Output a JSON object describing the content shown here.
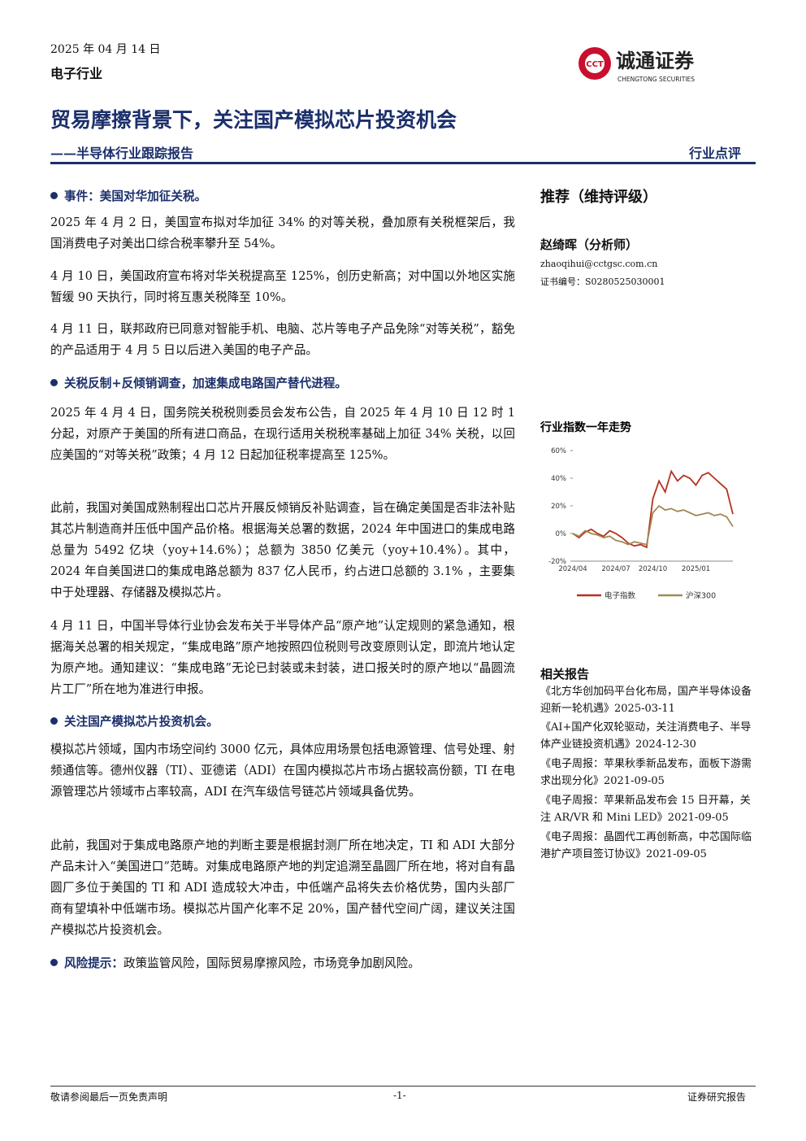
{
  "header": {
    "date": "2025 年 04 月 14 日",
    "industry": "电子行业",
    "logo_mark": "CCT",
    "logo_cn": "诚通证券",
    "logo_en": "CHENGTONG SECURITIES"
  },
  "title": "贸易摩擦背景下，关注国产模拟芯片投资机会",
  "subtitle": "——半导体行业跟踪报告",
  "report_type": "行业点评",
  "body": [
    {
      "heading": "事件：美国对华加征关税。",
      "paragraphs": [
        "2025 年 4 月 2 日，美国宣布拟对华加征 34% 的对等关税，叠加原有关税框架后，我国消费电子对美出口综合税率攀升至 54%。",
        "4 月 10 日，美国政府宣布将对华关税提高至 125%，创历史新高；对中国以外地区实施暂缓 90 天执行，同时将互惠关税降至 10%。",
        "4 月 11 日，联邦政府已同意对智能手机、电脑、芯片等电子产品免除“对等关税”，豁免的产品适用于 4 月 5 日以后进入美国的电子产品。"
      ]
    },
    {
      "heading": "关税反制+反倾销调查，加速集成电路国产替代进程。",
      "paragraphs": [
        "2025 年 4 月 4 日，国务院关税税则委员会发布公告，自 2025 年 4 月 10 日 12 时 1 分起，对原产于美国的所有进口商品，在现行适用关税税率基础上加征 34% 关税，以回应美国的“对等关税”政策；4 月 12 日起加征税率提高至 125%。",
        "此前，我国对美国成熟制程出口芯片开展反倾销反补贴调查，旨在确定美国是否非法补贴其芯片制造商并压低中国产品价格。根据海关总署的数据，2024 年中国进口的集成电路总量为 5492 亿块（yoy+14.6%）；总额为 3850 亿美元（yoy+10.4%）。其中，2024 年自美国进口的集成电路总额为 837 亿人民币，约占进口总额的 3.1% ，主要集中于处理器、存储器及模拟芯片。",
        "4 月 11 日，中国半导体行业协会发布关于半导体产品“原产地”认定规则的紧急通知，根据海关总署的相关规定，“集成电路”原产地按照四位税则号改变原则认定，即流片地认定为原产地。通知建议：“集成电路”无论已封装或未封装，进口报关时的原产地以“晶圆流片工厂”所在地为准进行申报。"
      ]
    },
    {
      "heading": "关注国产模拟芯片投资机会。",
      "paragraphs": [
        "模拟芯片领域，国内市场空间约 3000 亿元，具体应用场景包括电源管理、信号处理、射频通信等。德州仪器（TI）、亚德诺（ADI）在国内模拟芯片市场占据较高份额，TI 在电源管理芯片领域市占率较高，ADI 在汽车级信号链芯片领域具备优势。",
        "此前，我国对于集成电路原产地的判断主要是根据封测厂所在地决定，TI 和 ADI 大部分产品未计入“美国进口”范畴。对集成电路原产地的判定追溯至晶圆厂所在地，将对自有晶圆厂多位于美国的 TI 和 ADI 造成较大冲击，中低端产品将失去价格优势，国内头部厂商有望填补中低端市场。模拟芯片国产化率不足 20%，国产替代空间广阔，建议关注国产模拟芯片投资机会。"
      ]
    }
  ],
  "risk": {
    "label": "风险提示：",
    "text": "政策监管风险，国际贸易摩擦风险，市场竞争加剧风险。"
  },
  "sidebar": {
    "rating": "推荐（维持评级）",
    "analyst": "赵绮晖（分析师）",
    "email": "zhaoqihui@cctgsc.com.cn",
    "cert": "证书编号：S0280525030001",
    "related_title": "相关报告",
    "related": [
      "《北方华创加码平台化布局，国产半导体设备迎新一轮机遇》2025-03-11",
      "《AI+国产化双轮驱动，关注消费电子、半导体产业链投资机遇》2024-12-30",
      "《电子周报：苹果秋季新品发布，面板下游需求出现分化》2021-09-05",
      "《电子周报：苹果新品发布会 15 日开幕，关注 AR/VR 和 Mini LED》2021-09-05",
      "《电子周报：晶圆代工再创新高，中芯国际临港扩产项目签订协议》2021-09-05"
    ]
  },
  "chart_data": {
    "type": "line",
    "title": "行业指数一年走势",
    "categories": [
      "2024/04",
      null,
      null,
      null,
      null,
      null,
      null,
      "2024/07",
      null,
      null,
      null,
      null,
      null,
      "2024/10",
      null,
      null,
      null,
      null,
      null,
      null,
      "2025/01",
      null,
      null,
      null,
      null,
      null,
      null
    ],
    "series": [
      {
        "name": "电子指数",
        "color": "#b5321f",
        "values": [
          0,
          -3,
          1,
          3,
          0,
          -2,
          2,
          0,
          -3,
          -7,
          -9,
          -8,
          -10,
          25,
          38,
          30,
          45,
          38,
          42,
          40,
          35,
          42,
          44,
          40,
          36,
          32,
          14
        ]
      },
      {
        "name": "沪深300",
        "color": "#a08a55",
        "values": [
          0,
          -2,
          2,
          0,
          -1,
          -3,
          -2,
          -5,
          -6,
          -8,
          -6,
          -7,
          -8,
          15,
          20,
          17,
          18,
          16,
          17,
          15,
          13,
          14,
          15,
          13,
          14,
          12,
          5
        ]
      }
    ],
    "ylim": [
      -20,
      60
    ],
    "yticks": [
      {
        "value": -20,
        "label": "-20%"
      },
      {
        "value": 0,
        "label": "0%"
      },
      {
        "value": 20,
        "label": "20%"
      },
      {
        "value": 40,
        "label": "40%"
      },
      {
        "value": 60,
        "label": "60%"
      }
    ]
  },
  "footer": {
    "left": "敬请参阅最后一页免责声明",
    "center": "-1-",
    "right": "证券研究报告"
  }
}
